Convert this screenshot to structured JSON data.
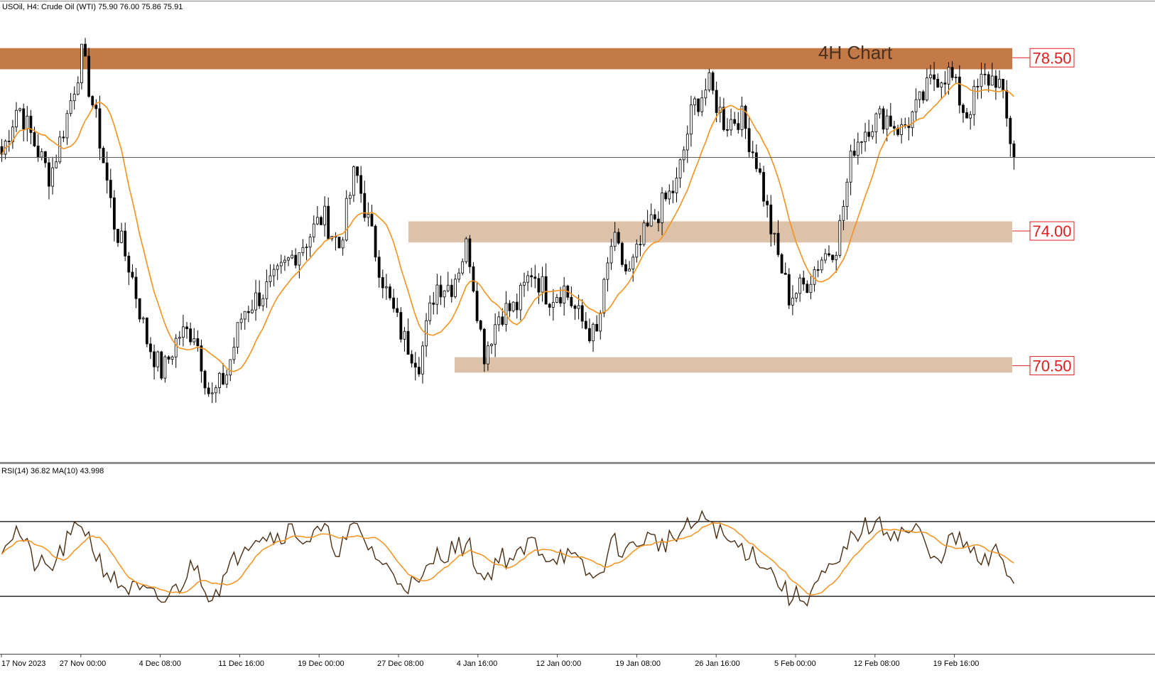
{
  "header": {
    "symbol": "USOil",
    "timeframe": "H4",
    "instrument": "Crude Oil (WTI)",
    "ohlc": "75.90 76.00 75.86 75.91",
    "title_line": "USOil, H4:  Crude Oil (WTI)  75.90 76.00 75.86 75.91"
  },
  "annotation": {
    "title": "4H Chart"
  },
  "colors": {
    "background": "#ffffff",
    "candle": "#000000",
    "ma_line": "#f5921e",
    "rsi_line": "#4a2f14",
    "resistance_zone": "#c47a47",
    "support_zone": "#dcc2a8",
    "level_label": "#e01e1e",
    "title_text": "#4a3020"
  },
  "chart_data": [
    {
      "type": "candlestick",
      "title": "4H Chart",
      "x_tick_labels": [
        "17 Nov 2023",
        "27 Nov 00:00",
        "4 Dec 08:00",
        "11 Dec 16:00",
        "19 Dec 00:00",
        "27 Dec 08:00",
        "4 Jan 16:00",
        "12 Jan 00:00",
        "19 Jan 08:00",
        "26 Jan 16:00",
        "5 Feb 00:00",
        "12 Feb 08:00",
        "19 Feb 16:00"
      ],
      "ylim": [
        68.0,
        80.0
      ],
      "current_price": 75.91,
      "close_series_approx": [
        {
          "x": "17 Nov 2023",
          "y": 76.0
        },
        {
          "x": "20 Nov",
          "y": 77.3
        },
        {
          "x": "22 Nov",
          "y": 76.3
        },
        {
          "x": "24 Nov",
          "y": 75.4
        },
        {
          "x": "27 Nov 00:00",
          "y": 76.9
        },
        {
          "x": "28 Nov",
          "y": 78.6
        },
        {
          "x": "29 Nov",
          "y": 76.6
        },
        {
          "x": "1 Dec",
          "y": 74.2
        },
        {
          "x": "4 Dec 08:00",
          "y": 73.0
        },
        {
          "x": "6 Dec",
          "y": 71.2
        },
        {
          "x": "7 Dec",
          "y": 70.3
        },
        {
          "x": "8 Dec",
          "y": 71.3
        },
        {
          "x": "11 Dec 16:00",
          "y": 71.4
        },
        {
          "x": "12 Dec",
          "y": 69.6
        },
        {
          "x": "13 Dec",
          "y": 70.3
        },
        {
          "x": "14 Dec",
          "y": 71.9
        },
        {
          "x": "15 Dec",
          "y": 72.3
        },
        {
          "x": "18 Dec",
          "y": 72.7
        },
        {
          "x": "19 Dec 00:00",
          "y": 73.3
        },
        {
          "x": "20 Dec",
          "y": 73.8
        },
        {
          "x": "21 Dec",
          "y": 74.4
        },
        {
          "x": "22 Dec",
          "y": 73.6
        },
        {
          "x": "26 Dec",
          "y": 75.6
        },
        {
          "x": "27 Dec 08:00",
          "y": 73.9
        },
        {
          "x": "28 Dec",
          "y": 72.3
        },
        {
          "x": "29 Dec",
          "y": 71.2
        },
        {
          "x": "2 Jan",
          "y": 70.6
        },
        {
          "x": "3 Jan",
          "y": 72.6
        },
        {
          "x": "4 Jan 16:00",
          "y": 72.6
        },
        {
          "x": "5 Jan",
          "y": 73.7
        },
        {
          "x": "8 Jan",
          "y": 70.8
        },
        {
          "x": "9 Jan",
          "y": 71.9
        },
        {
          "x": "10 Jan",
          "y": 72.0
        },
        {
          "x": "11 Jan",
          "y": 73.0
        },
        {
          "x": "12 Jan 00:00",
          "y": 72.3
        },
        {
          "x": "15 Jan",
          "y": 72.5
        },
        {
          "x": "16 Jan",
          "y": 71.7
        },
        {
          "x": "17 Jan",
          "y": 71.2
        },
        {
          "x": "18 Jan",
          "y": 73.8
        },
        {
          "x": "19 Jan 08:00",
          "y": 72.8
        },
        {
          "x": "22 Jan",
          "y": 73.9
        },
        {
          "x": "23 Jan",
          "y": 74.6
        },
        {
          "x": "24 Jan",
          "y": 75.2
        },
        {
          "x": "25 Jan",
          "y": 77.2
        },
        {
          "x": "26 Jan 16:00",
          "y": 77.8
        },
        {
          "x": "29 Jan",
          "y": 76.8
        },
        {
          "x": "30 Jan",
          "y": 77.0
        },
        {
          "x": "31 Jan",
          "y": 75.8
        },
        {
          "x": "1 Feb",
          "y": 73.8
        },
        {
          "x": "2 Feb",
          "y": 72.3
        },
        {
          "x": "5 Feb 00:00",
          "y": 72.6
        },
        {
          "x": "6 Feb",
          "y": 73.3
        },
        {
          "x": "7 Feb",
          "y": 73.7
        },
        {
          "x": "8 Feb",
          "y": 76.2
        },
        {
          "x": "9 Feb",
          "y": 76.8
        },
        {
          "x": "12 Feb 08:00",
          "y": 77.0
        },
        {
          "x": "13 Feb",
          "y": 76.6
        },
        {
          "x": "14 Feb",
          "y": 77.2
        },
        {
          "x": "15 Feb",
          "y": 78.0
        },
        {
          "x": "16 Feb",
          "y": 78.1
        },
        {
          "x": "19 Feb 16:00",
          "y": 77.0
        },
        {
          "x": "20 Feb",
          "y": 77.9
        },
        {
          "x": "21 Feb",
          "y": 78.0
        },
        {
          "x": "22 Feb",
          "y": 75.91
        }
      ],
      "levels": [
        {
          "label": "78.50",
          "price": 78.5,
          "zone": [
            78.2,
            78.75
          ],
          "kind": "resistance"
        },
        {
          "label": "74.00",
          "price": 74.0,
          "zone": [
            73.7,
            74.25
          ],
          "kind": "support"
        },
        {
          "label": "70.50",
          "price": 70.5,
          "zone": [
            70.32,
            70.72
          ],
          "kind": "support"
        }
      ],
      "moving_average": {
        "color": "orange"
      }
    },
    {
      "type": "line",
      "title": "RSI(14) 36.82 MA(10) 43.998",
      "indicator": "RSI(14)",
      "value_label": "36.82",
      "ma_label": "MA(10) 43.998",
      "ylim": [
        0,
        100
      ],
      "guide_levels": [
        70,
        30
      ],
      "rsi_series_approx": [
        {
          "x": "17 Nov 2023",
          "y": 58
        },
        {
          "x": "20 Nov",
          "y": 66
        },
        {
          "x": "22 Nov",
          "y": 48
        },
        {
          "x": "24 Nov",
          "y": 44
        },
        {
          "x": "27 Nov 00:00",
          "y": 58
        },
        {
          "x": "28 Nov",
          "y": 70
        },
        {
          "x": "29 Nov",
          "y": 50
        },
        {
          "x": "1 Dec",
          "y": 38
        },
        {
          "x": "4 Dec 08:00",
          "y": 34
        },
        {
          "x": "6 Dec",
          "y": 31
        },
        {
          "x": "7 Dec",
          "y": 27
        },
        {
          "x": "8 Dec",
          "y": 35
        },
        {
          "x": "11 Dec 16:00",
          "y": 48
        },
        {
          "x": "12 Dec",
          "y": 30
        },
        {
          "x": "13 Dec",
          "y": 41
        },
        {
          "x": "14 Dec",
          "y": 58
        },
        {
          "x": "15 Dec",
          "y": 64
        },
        {
          "x": "18 Dec",
          "y": 62
        },
        {
          "x": "19 Dec 00:00",
          "y": 66
        },
        {
          "x": "20 Dec",
          "y": 60
        },
        {
          "x": "21 Dec",
          "y": 65
        },
        {
          "x": "22 Dec",
          "y": 55
        },
        {
          "x": "26 Dec",
          "y": 67
        },
        {
          "x": "27 Dec 08:00",
          "y": 55
        },
        {
          "x": "28 Dec",
          "y": 44
        },
        {
          "x": "29 Dec",
          "y": 38
        },
        {
          "x": "2 Jan",
          "y": 35
        },
        {
          "x": "3 Jan",
          "y": 52
        },
        {
          "x": "4 Jan 16:00",
          "y": 55
        },
        {
          "x": "5 Jan",
          "y": 58
        },
        {
          "x": "8 Jan",
          "y": 38
        },
        {
          "x": "9 Jan",
          "y": 52
        },
        {
          "x": "10 Jan",
          "y": 49
        },
        {
          "x": "11 Jan",
          "y": 60
        },
        {
          "x": "12 Jan 00:00",
          "y": 51
        },
        {
          "x": "15 Jan",
          "y": 53
        },
        {
          "x": "16 Jan",
          "y": 46
        },
        {
          "x": "17 Jan",
          "y": 38
        },
        {
          "x": "18 Jan",
          "y": 59
        },
        {
          "x": "19 Jan 08:00",
          "y": 54
        },
        {
          "x": "22 Jan",
          "y": 62
        },
        {
          "x": "23 Jan",
          "y": 58
        },
        {
          "x": "24 Jan",
          "y": 62
        },
        {
          "x": "25 Jan",
          "y": 68
        },
        {
          "x": "26 Jan 16:00",
          "y": 72
        },
        {
          "x": "29 Jan",
          "y": 60
        },
        {
          "x": "30 Jan",
          "y": 56
        },
        {
          "x": "31 Jan",
          "y": 52
        },
        {
          "x": "1 Feb",
          "y": 42
        },
        {
          "x": "2 Feb",
          "y": 30
        },
        {
          "x": "5 Feb 00:00",
          "y": 29
        },
        {
          "x": "6 Feb",
          "y": 40
        },
        {
          "x": "7 Feb",
          "y": 45
        },
        {
          "x": "8 Feb",
          "y": 63
        },
        {
          "x": "9 Feb",
          "y": 68
        },
        {
          "x": "12 Feb 08:00",
          "y": 66
        },
        {
          "x": "13 Feb",
          "y": 64
        },
        {
          "x": "14 Feb",
          "y": 66
        },
        {
          "x": "15 Feb",
          "y": 47
        },
        {
          "x": "16 Feb",
          "y": 60
        },
        {
          "x": "19 Feb 16:00",
          "y": 58
        },
        {
          "x": "20 Feb",
          "y": 46
        },
        {
          "x": "21 Feb",
          "y": 54
        },
        {
          "x": "22 Feb",
          "y": 37
        }
      ]
    }
  ]
}
